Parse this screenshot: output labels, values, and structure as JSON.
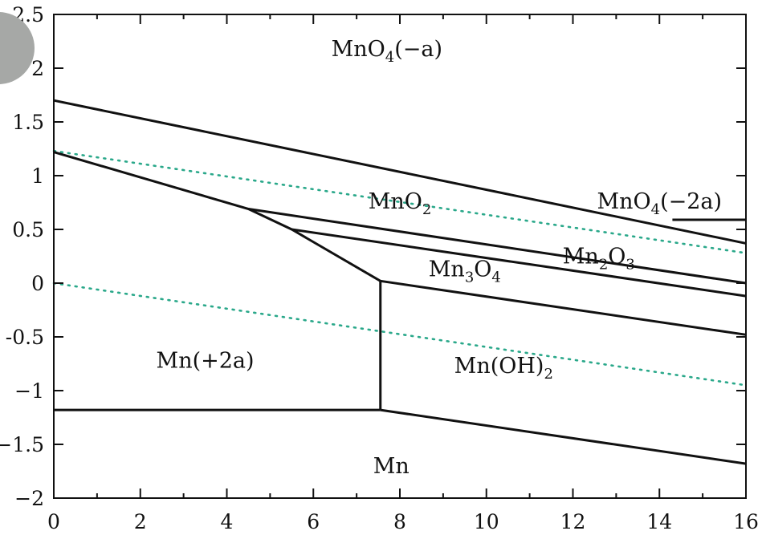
{
  "chart_data": {
    "type": "line",
    "title": "",
    "xlabel": "",
    "ylabel": "",
    "xlim": [
      0,
      16
    ],
    "ylim": [
      -2,
      2.5
    ],
    "x_ticks": [
      0,
      2,
      4,
      6,
      8,
      10,
      12,
      14,
      16
    ],
    "y_ticks": [
      2.5,
      2,
      1.5,
      1,
      0.5,
      0,
      -0.5,
      -1,
      -1.5,
      -2
    ],
    "x_tick_labels": [
      "0",
      "2",
      "4",
      "6",
      "8",
      "10",
      "12",
      "14",
      "16"
    ],
    "y_tick_labels": [
      "2.5",
      "2",
      "1.5",
      "1",
      "0.5",
      "0",
      "-0.5",
      "−1",
      "−1.5",
      "−2"
    ],
    "grid": false,
    "boundaries": [
      {
        "points": [
          [
            0,
            1.7
          ],
          [
            16,
            0.37
          ]
        ]
      },
      {
        "points": [
          [
            0,
            1.22
          ],
          [
            4.5,
            0.69
          ],
          [
            5.5,
            0.5
          ],
          [
            7.55,
            0.02
          ]
        ]
      },
      {
        "points": [
          [
            4.5,
            0.69
          ],
          [
            16,
            0.0
          ]
        ]
      },
      {
        "points": [
          [
            5.5,
            0.5
          ],
          [
            16,
            -0.12
          ]
        ]
      },
      {
        "points": [
          [
            7.55,
            0.02
          ],
          [
            16,
            -0.48
          ]
        ]
      },
      {
        "points": [
          [
            7.55,
            0.02
          ],
          [
            7.55,
            -1.18
          ]
        ]
      },
      {
        "points": [
          [
            0,
            -1.18
          ],
          [
            7.55,
            -1.18
          ]
        ]
      },
      {
        "points": [
          [
            7.55,
            -1.18
          ],
          [
            16,
            -1.68
          ]
        ]
      },
      {
        "points": [
          [
            14.3,
            0.59
          ],
          [
            16,
            0.59
          ]
        ]
      }
    ],
    "water_lines": [
      {
        "points": [
          [
            0,
            1.23
          ],
          [
            16,
            0.28
          ]
        ]
      },
      {
        "points": [
          [
            0,
            0.0
          ],
          [
            16,
            -0.95
          ]
        ]
      }
    ],
    "regions": [
      {
        "base": "MnO",
        "sub1": "4",
        "mid": "(−a)",
        "sub2": "",
        "x": 7.7,
        "y": 2.18
      },
      {
        "base": "MnO",
        "sub1": "2",
        "mid": "",
        "sub2": "",
        "x": 8.0,
        "y": 0.76
      },
      {
        "base": "MnO",
        "sub1": "4",
        "mid": "(−2a)",
        "sub2": "",
        "x": 14.0,
        "y": 0.76
      },
      {
        "base": "Mn",
        "sub1": "2",
        "mid": "O",
        "sub2": "3",
        "x": 12.6,
        "y": 0.25
      },
      {
        "base": "Mn",
        "sub1": "3",
        "mid": "O",
        "sub2": "4",
        "x": 9.5,
        "y": 0.13
      },
      {
        "base": "Mn(+2a)",
        "sub1": "",
        "mid": "",
        "sub2": "",
        "x": 3.5,
        "y": -0.72
      },
      {
        "base": "Mn(OH)",
        "sub1": "2",
        "mid": "",
        "sub2": "",
        "x": 10.4,
        "y": -0.77
      },
      {
        "base": "Mn",
        "sub1": "",
        "mid": "",
        "sub2": "",
        "x": 7.8,
        "y": -1.7
      }
    ]
  }
}
